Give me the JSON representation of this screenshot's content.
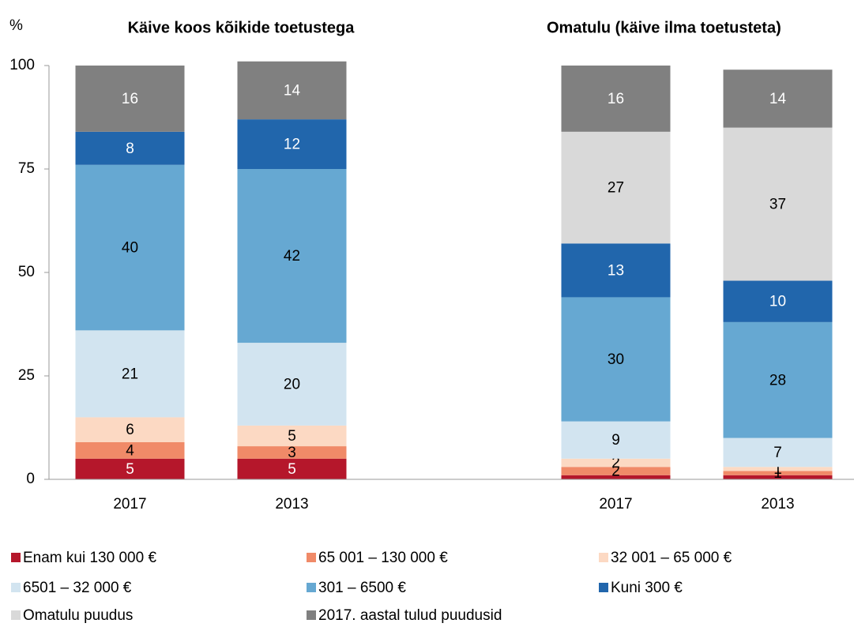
{
  "chart_data": {
    "type": "stacked_bar",
    "ylabel": "%",
    "group_titles": [
      "Käive koos kõikide toetustega",
      "Omatulu (käive ilma toetusteta)"
    ],
    "categories": [
      "2017",
      "2013",
      null,
      "2017",
      "2013"
    ],
    "ylim": [
      0,
      100
    ],
    "yticks": [
      0,
      25,
      50,
      75,
      100
    ],
    "series": [
      {
        "name": "Enam kui 130 000 €",
        "color": "#b5172b",
        "label_color": "#ffffff",
        "values": [
          5,
          5,
          null,
          1,
          1
        ],
        "value_labels": [
          "5",
          "5",
          null,
          null,
          null
        ]
      },
      {
        "name": "65 001 – 130 000 €",
        "color": "#f08a68",
        "label_color": "#000000",
        "values": [
          4,
          3,
          null,
          2,
          1
        ]
      },
      {
        "name": "32 001 – 65 000 €",
        "color": "#fcd9c3",
        "label_color": "#000000",
        "values": [
          6,
          5,
          null,
          2,
          1
        ]
      },
      {
        "name": "6501 – 32 000 €",
        "color": "#d2e4f0",
        "label_color": "#000000",
        "values": [
          21,
          20,
          null,
          9,
          7
        ]
      },
      {
        "name": "301 – 6500 €",
        "color": "#66a8d2",
        "label_color": "#000000",
        "values": [
          40,
          42,
          null,
          30,
          28
        ]
      },
      {
        "name": "Kuni 300 €",
        "color": "#2166ac",
        "label_color": "#ffffff",
        "values": [
          8,
          12,
          null,
          13,
          10
        ]
      },
      {
        "name": "Omatulu puudus",
        "color": "#d9d9d9",
        "label_color": "#000000",
        "values": [
          null,
          null,
          null,
          27,
          37
        ]
      },
      {
        "name": "2017. aastal tulud puudusid",
        "color": "#808080",
        "label_color": "#ffffff",
        "values": [
          16,
          14,
          null,
          16,
          14
        ]
      }
    ]
  }
}
